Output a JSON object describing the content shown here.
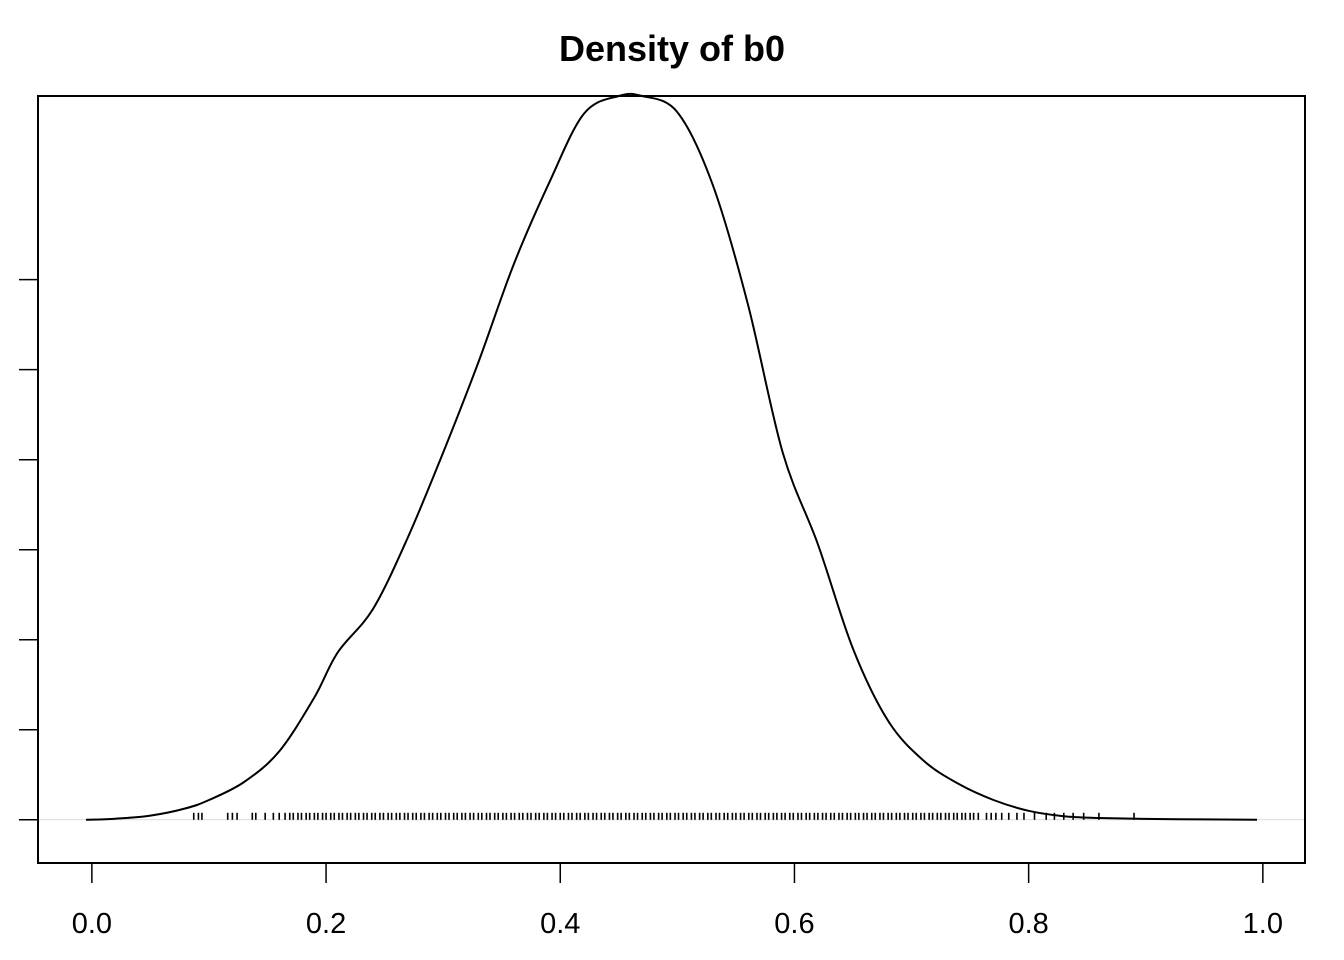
{
  "chart_data": {
    "type": "line",
    "title": "Density of b0",
    "xlabel": "",
    "ylabel": "",
    "xlim": [
      -0.046,
      1.036
    ],
    "ylim": [
      -0.24,
      4.02
    ],
    "x_ticks": [
      0.0,
      0.2,
      0.4,
      0.6,
      0.8,
      1.0
    ],
    "x_tick_labels": [
      "0.0",
      "0.2",
      "0.4",
      "0.6",
      "0.8",
      "1.0"
    ],
    "y_ticks": [
      0,
      0.5,
      1.0,
      1.5,
      2.0,
      2.5,
      3.0
    ],
    "y_tick_labels": [
      "",
      "",
      "",
      "",
      "",
      "",
      ""
    ],
    "grid": false,
    "zero_line": true,
    "colors": {
      "line": "#000000",
      "frame": "#000000",
      "zero_line": "#d9d9d9",
      "rug": "#000000"
    },
    "series": [
      {
        "x": [
          -0.005,
          0.02,
          0.05,
          0.08,
          0.1,
          0.13,
          0.16,
          0.19,
          0.21,
          0.24,
          0.27,
          0.3,
          0.33,
          0.36,
          0.39,
          0.42,
          0.45,
          0.47,
          0.5,
          0.53,
          0.56,
          0.59,
          0.62,
          0.65,
          0.68,
          0.71,
          0.74,
          0.77,
          0.8,
          0.83,
          0.86,
          0.9,
          0.95,
          0.995
        ],
        "y": [
          0.0,
          0.006,
          0.023,
          0.063,
          0.11,
          0.21,
          0.38,
          0.68,
          0.93,
          1.17,
          1.57,
          2.04,
          2.54,
          3.08,
          3.53,
          3.92,
          4.02,
          4.02,
          3.93,
          3.53,
          2.87,
          2.04,
          1.53,
          0.95,
          0.55,
          0.33,
          0.2,
          0.11,
          0.05,
          0.02,
          0.01,
          0.005,
          0.002,
          0.0
        ]
      }
    ],
    "rug": [
      0.087,
      0.091,
      0.094,
      0.116,
      0.12,
      0.124,
      0.137,
      0.14,
      0.148,
      0.155,
      0.16,
      0.165,
      0.169,
      0.172,
      0.176,
      0.179,
      0.183,
      0.186,
      0.19,
      0.193,
      0.197,
      0.2,
      0.204,
      0.207,
      0.211,
      0.214,
      0.218,
      0.221,
      0.225,
      0.228,
      0.232,
      0.235,
      0.239,
      0.242,
      0.246,
      0.249,
      0.253,
      0.256,
      0.26,
      0.263,
      0.267,
      0.27,
      0.274,
      0.277,
      0.281,
      0.284,
      0.288,
      0.291,
      0.295,
      0.298,
      0.302,
      0.305,
      0.309,
      0.312,
      0.316,
      0.319,
      0.323,
      0.326,
      0.33,
      0.333,
      0.337,
      0.34,
      0.344,
      0.347,
      0.351,
      0.354,
      0.358,
      0.361,
      0.365,
      0.368,
      0.372,
      0.375,
      0.379,
      0.382,
      0.386,
      0.389,
      0.393,
      0.396,
      0.4,
      0.403,
      0.407,
      0.41,
      0.414,
      0.417,
      0.421,
      0.424,
      0.428,
      0.431,
      0.435,
      0.438,
      0.442,
      0.445,
      0.449,
      0.452,
      0.456,
      0.459,
      0.463,
      0.466,
      0.47,
      0.473,
      0.477,
      0.48,
      0.484,
      0.487,
      0.491,
      0.494,
      0.498,
      0.501,
      0.505,
      0.508,
      0.512,
      0.515,
      0.519,
      0.522,
      0.526,
      0.529,
      0.533,
      0.536,
      0.54,
      0.543,
      0.547,
      0.55,
      0.554,
      0.557,
      0.561,
      0.564,
      0.568,
      0.571,
      0.575,
      0.578,
      0.582,
      0.585,
      0.589,
      0.592,
      0.596,
      0.599,
      0.603,
      0.606,
      0.61,
      0.613,
      0.617,
      0.62,
      0.624,
      0.627,
      0.631,
      0.634,
      0.638,
      0.641,
      0.645,
      0.648,
      0.652,
      0.655,
      0.659,
      0.662,
      0.666,
      0.669,
      0.673,
      0.676,
      0.68,
      0.683,
      0.687,
      0.69,
      0.694,
      0.697,
      0.701,
      0.704,
      0.708,
      0.711,
      0.715,
      0.718,
      0.722,
      0.725,
      0.729,
      0.732,
      0.736,
      0.739,
      0.743,
      0.746,
      0.75,
      0.753,
      0.757,
      0.764,
      0.768,
      0.772,
      0.777,
      0.783,
      0.79,
      0.796,
      0.805,
      0.815,
      0.822,
      0.83,
      0.838,
      0.847,
      0.86,
      0.89
    ]
  }
}
